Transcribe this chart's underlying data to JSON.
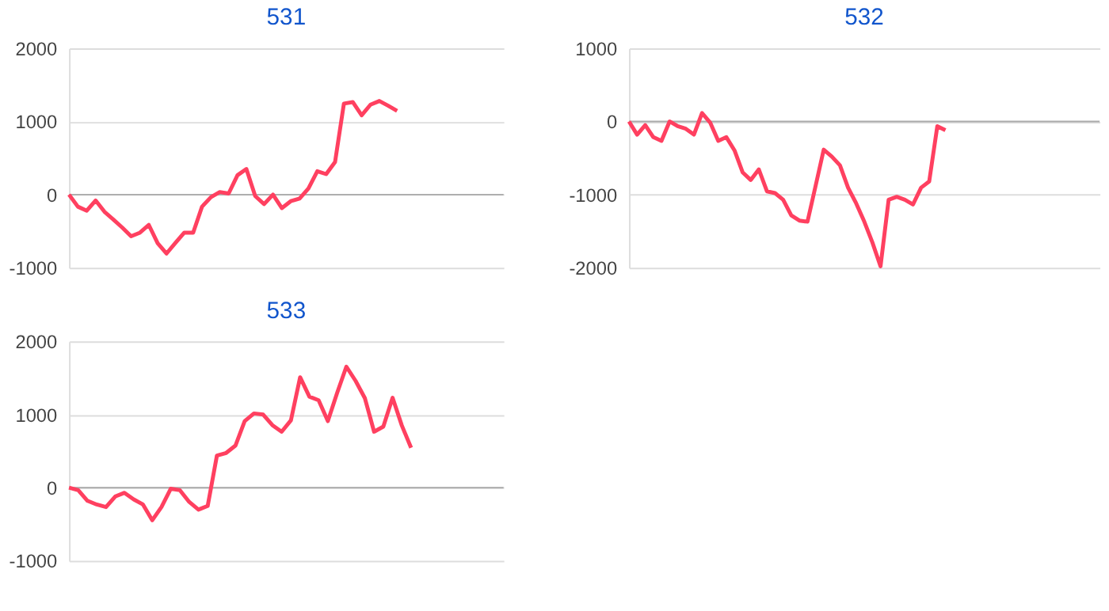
{
  "chart_data": [
    {
      "type": "line",
      "title": "531",
      "color": "#ff4060",
      "grid": "y",
      "tick_labels": "y",
      "ylim": [
        -1000,
        2000
      ],
      "yticks": [
        -1000,
        0,
        1000,
        2000
      ],
      "ref_lines": [
        {
          "axis": "y",
          "value": 0,
          "color": "#aaaaaa"
        }
      ],
      "categories": [
        null,
        null,
        null,
        null,
        null,
        null,
        null,
        null,
        null,
        null,
        null,
        null,
        null,
        null,
        null,
        null,
        null,
        null,
        null,
        null,
        null,
        null,
        null,
        null,
        null,
        null,
        null,
        null,
        null,
        null,
        null,
        null,
        null,
        null,
        null,
        null,
        null,
        null,
        null,
        null,
        null,
        null,
        null,
        null,
        null,
        null,
        null,
        null,
        null,
        null
      ],
      "values": [
        0,
        -165,
        -220,
        -80,
        -235,
        -340,
        -450,
        -570,
        -520,
        -415,
        -665,
        -805,
        -660,
        -520,
        -520,
        -165,
        -35,
        35,
        15,
        265,
        350,
        -20,
        -130,
        0,
        -185,
        -90,
        -55,
        85,
        320,
        280,
        445,
        1245,
        1265,
        1085,
        1230,
        1280,
        1215,
        1145,
        null,
        null,
        null,
        null,
        null,
        null,
        null,
        null,
        null,
        null,
        null,
        null
      ]
    },
    {
      "type": "line",
      "title": "532",
      "color": "#ff4060",
      "grid": "y",
      "tick_labels": "y",
      "ylim": [
        -2000,
        1000
      ],
      "yticks": [
        -2000,
        -1000,
        0,
        1000
      ],
      "ref_lines": [
        {
          "axis": "y",
          "value": 0,
          "color": "#aaaaaa"
        }
      ],
      "categories": [
        null,
        null,
        null,
        null,
        null,
        null,
        null,
        null,
        null,
        null,
        null,
        null,
        null,
        null,
        null,
        null,
        null,
        null,
        null,
        null,
        null,
        null,
        null,
        null,
        null,
        null,
        null,
        null,
        null,
        null,
        null,
        null,
        null,
        null,
        null,
        null,
        null,
        null,
        null,
        null,
        null,
        null,
        null,
        null,
        null,
        null,
        null,
        null,
        null,
        null,
        null,
        null,
        null,
        null,
        null,
        null,
        null,
        null,
        null
      ],
      "values": [
        0,
        -180,
        -50,
        -215,
        -265,
        0,
        -65,
        -100,
        -180,
        115,
        -15,
        -265,
        -215,
        -395,
        -695,
        -800,
        -655,
        -955,
        -980,
        -1070,
        -1285,
        -1355,
        -1370,
        -880,
        -385,
        -480,
        -600,
        -905,
        -1120,
        -1370,
        -1655,
        -1980,
        -1070,
        -1030,
        -1070,
        -1135,
        -905,
        -820,
        -65,
        -120,
        null,
        null,
        null,
        null,
        null,
        null,
        null,
        null,
        null,
        null,
        null,
        null,
        null,
        null,
        null,
        null,
        null,
        null,
        null
      ]
    },
    {
      "type": "line",
      "title": "533",
      "color": "#ff4060",
      "grid": "y",
      "tick_labels": "y",
      "ylim": [
        -1000,
        2000
      ],
      "yticks": [
        -1000,
        0,
        1000,
        2000
      ],
      "ref_lines": [
        {
          "axis": "y",
          "value": 0,
          "color": "#aaaaaa"
        }
      ],
      "categories": [
        null,
        null,
        null,
        null,
        null,
        null,
        null,
        null,
        null,
        null,
        null,
        null,
        null,
        null,
        null,
        null,
        null,
        null,
        null,
        null,
        null,
        null,
        null,
        null,
        null,
        null,
        null,
        null,
        null,
        null,
        null,
        null,
        null,
        null,
        null,
        null,
        null,
        null,
        null,
        null,
        null,
        null,
        null,
        null,
        null,
        null,
        null,
        null
      ],
      "values": [
        0,
        -35,
        -180,
        -230,
        -265,
        -120,
        -70,
        -160,
        -230,
        -445,
        -265,
        -15,
        -35,
        -195,
        -300,
        -250,
        440,
        475,
        575,
        910,
        1015,
        1000,
        855,
        765,
        920,
        1510,
        1245,
        1195,
        910,
        1295,
        1655,
        1460,
        1225,
        765,
        835,
        1230,
        850,
        545,
        null,
        null,
        null,
        null,
        null,
        null,
        null,
        null,
        null,
        null
      ]
    }
  ]
}
